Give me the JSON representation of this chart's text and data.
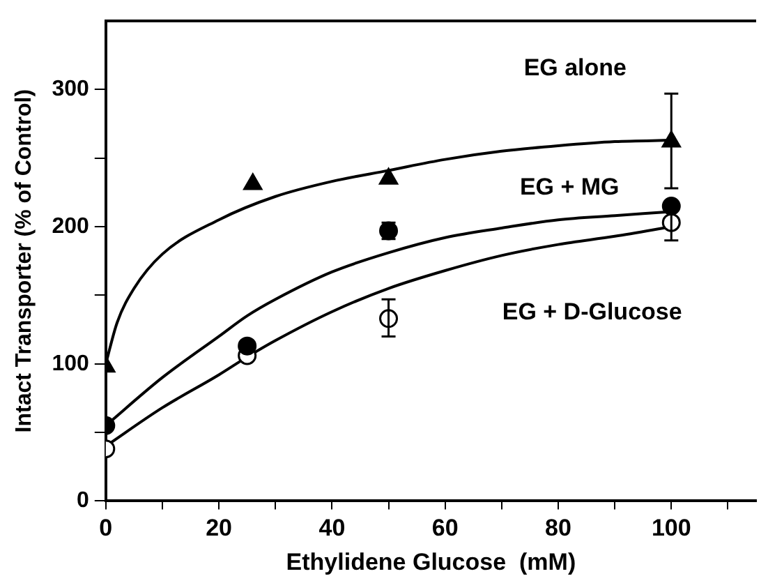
{
  "chart_data": {
    "type": "scatter",
    "xlabel": "Ethylidene Glucose  (mM)",
    "ylabel": "Intact Transporter (% of Control)",
    "xlim": [
      0,
      115
    ],
    "ylim": [
      0,
      350
    ],
    "xticks": [
      0,
      {
        "value": 10,
        "label": null
      },
      20,
      {
        "value": 30,
        "label": null
      },
      40,
      {
        "value": 50,
        "label": null
      },
      60,
      {
        "value": 70,
        "label": null
      },
      80,
      {
        "value": 90,
        "label": null
      },
      100,
      {
        "value": 110,
        "label": null
      }
    ],
    "yticks": [
      0,
      {
        "value": 50,
        "label": null
      },
      100,
      {
        "value": 150,
        "label": null
      },
      200,
      {
        "value": 250,
        "label": null
      },
      300
    ],
    "grid": false,
    "legend": false,
    "series": [
      {
        "name": "EG alone",
        "type": "scatter",
        "marker": "triangle",
        "color": "#000000",
        "x": [
          0,
          26,
          50,
          100
        ],
        "values": [
          98,
          231,
          235,
          262
        ],
        "errors": [
          null,
          null,
          null,
          [
            228,
            297
          ]
        ]
      },
      {
        "name": "EG + MG",
        "type": "scatter",
        "marker": "circle",
        "color": "#000000",
        "x": [
          0,
          25,
          50,
          100
        ],
        "values": [
          55,
          113,
          197,
          215
        ],
        "errors": [
          null,
          null,
          6,
          null
        ]
      },
      {
        "name": "EG + D-Glucose",
        "type": "scatter",
        "marker": "circle",
        "color": "#ffffff",
        "x": [
          0,
          25,
          50,
          100
        ],
        "values": [
          38,
          106,
          133,
          203
        ],
        "errors": [
          null,
          null,
          [
            120,
            147
          ],
          [
            190,
            212
          ]
        ]
      },
      {
        "type": "line",
        "marker": "none",
        "line_style": "solid",
        "color": "#000000",
        "x": [
          0,
          2,
          5,
          10,
          20,
          30,
          40,
          50,
          60,
          70,
          80,
          90,
          100
        ],
        "values": [
          100,
          130,
          155,
          180,
          205,
          222,
          233,
          241,
          249,
          255,
          259,
          262,
          263
        ]
      },
      {
        "type": "line",
        "marker": "none",
        "line_style": "solid",
        "color": "#000000",
        "x": [
          0,
          10,
          20,
          25,
          30,
          40,
          50,
          60,
          70,
          80,
          90,
          100
        ],
        "values": [
          55,
          90,
          120,
          135,
          147,
          167,
          181,
          192,
          199,
          205,
          208,
          211
        ]
      },
      {
        "type": "line",
        "marker": "none",
        "line_style": "solid",
        "color": "#000000",
        "x": [
          0,
          10,
          20,
          25,
          30,
          40,
          50,
          60,
          70,
          80,
          90,
          100
        ],
        "values": [
          40,
          68,
          92,
          105,
          117,
          138,
          155,
          168,
          179,
          187,
          193,
          200
        ]
      }
    ]
  }
}
